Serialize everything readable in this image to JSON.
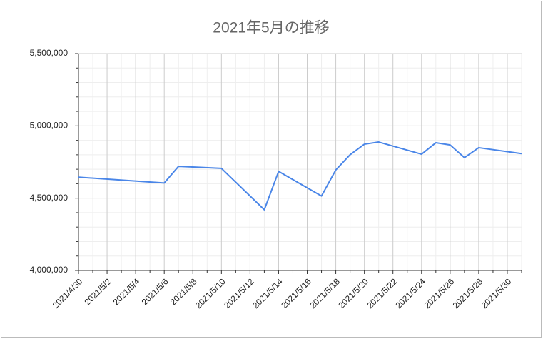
{
  "chart_data": {
    "type": "line",
    "title": "2021年5月の推移",
    "x": [
      "2021/4/30",
      "2021/5/6",
      "2021/5/7",
      "2021/5/10",
      "2021/5/13",
      "2021/5/14",
      "2021/5/17",
      "2021/5/18",
      "2021/5/19",
      "2021/5/20",
      "2021/5/21",
      "2021/5/24",
      "2021/5/25",
      "2021/5/26",
      "2021/5/27",
      "2021/5/28",
      "2021/5/31"
    ],
    "series": [
      {
        "color": "#4a86e8",
        "values": [
          4645000,
          4605000,
          4720000,
          4706000,
          4420000,
          4685000,
          4515000,
          4695000,
          4800000,
          4873000,
          4888000,
          4804000,
          4883000,
          4868000,
          4780000,
          4849000,
          4808000
        ]
      }
    ],
    "xlim": [
      "2021/4/30",
      "2021/5/31"
    ],
    "xticks": [
      "2021/4/30",
      "2021/5/2",
      "2021/5/4",
      "2021/5/6",
      "2021/5/8",
      "2021/5/10",
      "2021/5/12",
      "2021/5/14",
      "2021/5/16",
      "2021/5/18",
      "2021/5/20",
      "2021/5/22",
      "2021/5/24",
      "2021/5/26",
      "2021/5/28",
      "2021/5/30"
    ],
    "xminorticks": [
      "2021/5/1",
      "2021/5/3",
      "2021/5/5",
      "2021/5/7",
      "2021/5/9",
      "2021/5/11",
      "2021/5/13",
      "2021/5/15",
      "2021/5/17",
      "2021/5/19",
      "2021/5/21",
      "2021/5/23",
      "2021/5/25",
      "2021/5/27",
      "2021/5/29",
      "2021/5/31"
    ],
    "ylim": [
      4000000,
      5500000
    ],
    "yticks": [
      {
        "value": 4000000,
        "label": "4,000,000"
      },
      {
        "value": 4500000,
        "label": "4,500,000"
      },
      {
        "value": 5000000,
        "label": "5,000,000"
      },
      {
        "value": 5500000,
        "label": "5,500,000"
      }
    ],
    "yminorticks": [
      4100000,
      4200000,
      4300000,
      4400000,
      4600000,
      4700000,
      4800000,
      4900000,
      5100000,
      5200000,
      5300000,
      5400000
    ],
    "grid": true
  }
}
